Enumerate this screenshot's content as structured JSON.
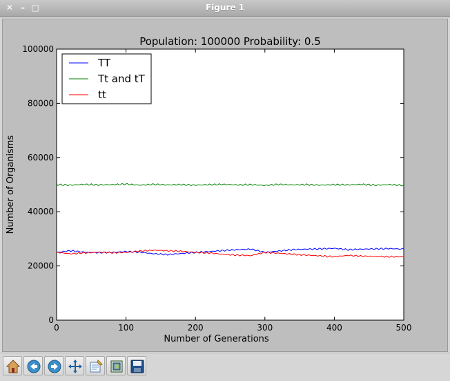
{
  "window": {
    "title": "Figure 1"
  },
  "titlebar_buttons": {
    "close": "✕",
    "minimize": "–",
    "maximize": "□"
  },
  "toolbar": {
    "buttons": [
      "home-icon",
      "back-icon",
      "forward-icon",
      "pan-icon",
      "configure-subplots-icon",
      "zoom-rect-icon",
      "save-icon"
    ]
  },
  "chart_data": {
    "type": "line",
    "title": "Population: 100000 Probability: 0.5",
    "xlabel": "Number of Generations",
    "ylabel": "Number of Organisms",
    "xlim": [
      0,
      500
    ],
    "ylim": [
      0,
      100000
    ],
    "xticks": [
      "0",
      "100",
      "200",
      "300",
      "400",
      "500"
    ],
    "yticks": [
      "0",
      "20000",
      "40000",
      "60000",
      "80000",
      "100000"
    ],
    "legend_position": "top-left",
    "x": [
      0,
      20,
      40,
      60,
      80,
      100,
      120,
      140,
      160,
      180,
      200,
      220,
      240,
      260,
      280,
      300,
      320,
      340,
      360,
      380,
      400,
      420,
      440,
      460,
      480,
      500
    ],
    "series": [
      {
        "name": "TT",
        "color": "#0000ff",
        "values": [
          25000,
          25600,
          25100,
          24900,
          25000,
          25300,
          25100,
          24500,
          24200,
          24600,
          25000,
          25300,
          25700,
          26000,
          26200,
          25000,
          25500,
          26000,
          26200,
          26300,
          26500,
          26000,
          26200,
          26300,
          26400,
          26200
        ]
      },
      {
        "name": "Tt and tT",
        "color": "#008000",
        "values": [
          50000,
          49800,
          50100,
          49900,
          50000,
          50200,
          49800,
          50100,
          49900,
          50000,
          49800,
          50000,
          50100,
          49900,
          50000,
          49700,
          50100,
          49900,
          50000,
          49800,
          50000,
          49900,
          50100,
          49800,
          50000,
          49700
        ]
      },
      {
        "name": "tt",
        "color": "#ff0000",
        "values": [
          25000,
          24500,
          24800,
          25100,
          24900,
          25000,
          25500,
          25800,
          25600,
          25400,
          25000,
          24800,
          24300,
          24000,
          23800,
          25000,
          24700,
          24300,
          24000,
          23700,
          23400,
          23900,
          23600,
          23500,
          23400,
          23500
        ]
      }
    ]
  }
}
